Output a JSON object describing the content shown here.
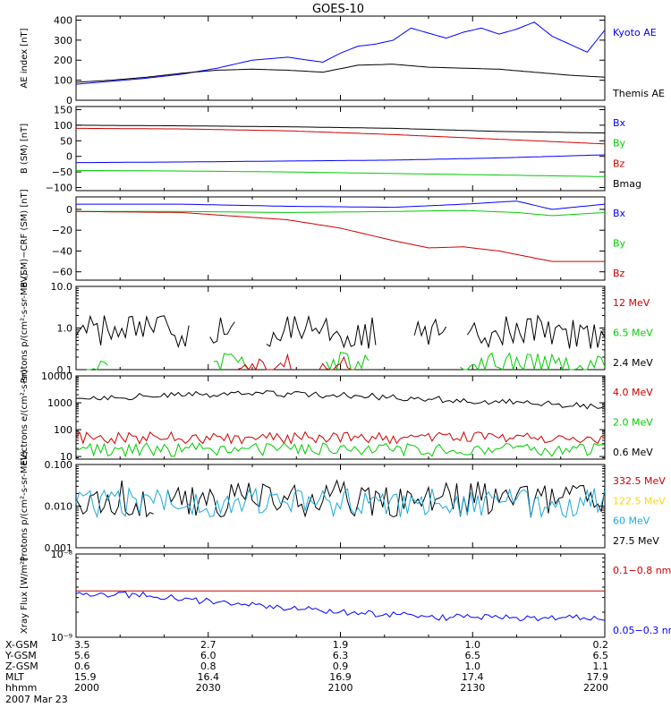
{
  "title": "GOES-10",
  "date": "2007 Mar 23",
  "colors": {
    "black": "#000000",
    "blue": "#0000ff",
    "red": "#cc0000",
    "green": "#00cc00",
    "yellow": "#ffd700",
    "cyan": "#1eaadc"
  },
  "chart_data": [
    {
      "type": "line",
      "ylabel": "AE index [nT]",
      "scale": "linear",
      "ylim": [
        0,
        420
      ],
      "yticks": [
        {
          "v": 400,
          "t": "400"
        },
        {
          "v": 300,
          "t": "300"
        },
        {
          "v": 200,
          "t": "200"
        },
        {
          "v": 100,
          "t": "100"
        },
        {
          "v": 0,
          "t": "0"
        }
      ],
      "labels": [
        {
          "text": "Kyoto AE",
          "color": "blue"
        },
        {
          "text": "Themis AE",
          "color": "black"
        }
      ],
      "series": [
        {
          "name": "Kyoto AE",
          "color": "blue",
          "keys": [
            [
              0,
              80
            ],
            [
              10,
              95
            ],
            [
              20,
              110
            ],
            [
              30,
              130
            ],
            [
              40,
              160
            ],
            [
              50,
              200
            ],
            [
              60,
              215
            ],
            [
              70,
              190
            ],
            [
              75,
              235
            ],
            [
              80,
              270
            ],
            [
              85,
              280
            ],
            [
              90,
              300
            ],
            [
              95,
              360
            ],
            [
              100,
              335
            ],
            [
              105,
              310
            ],
            [
              110,
              340
            ],
            [
              115,
              360
            ],
            [
              120,
              330
            ],
            [
              125,
              355
            ],
            [
              130,
              390
            ],
            [
              135,
              320
            ],
            [
              140,
              280
            ],
            [
              145,
              240
            ],
            [
              150,
              350
            ]
          ]
        },
        {
          "name": "Themis AE",
          "color": "black",
          "keys": [
            [
              0,
              90
            ],
            [
              10,
              100
            ],
            [
              20,
              115
            ],
            [
              30,
              135
            ],
            [
              40,
              150
            ],
            [
              50,
              155
            ],
            [
              60,
              150
            ],
            [
              70,
              140
            ],
            [
              80,
              175
            ],
            [
              90,
              180
            ],
            [
              100,
              165
            ],
            [
              110,
              160
            ],
            [
              120,
              155
            ],
            [
              130,
              140
            ],
            [
              140,
              125
            ],
            [
              150,
              115
            ]
          ]
        }
      ]
    },
    {
      "type": "line",
      "ylabel": "B (SM) [nT]",
      "scale": "linear",
      "ylim": [
        -110,
        160
      ],
      "yticks": [
        {
          "v": 150,
          "t": "150"
        },
        {
          "v": 100,
          "t": "100"
        },
        {
          "v": 50,
          "t": "50"
        },
        {
          "v": 0,
          "t": "0"
        },
        {
          "v": -50,
          "t": "−50"
        },
        {
          "v": -100,
          "t": "−100"
        }
      ],
      "labels": [
        {
          "text": "Bx",
          "color": "blue"
        },
        {
          "text": "By",
          "color": "green"
        },
        {
          "text": "Bz",
          "color": "red"
        },
        {
          "text": "Bmag",
          "color": "black"
        }
      ],
      "series": [
        {
          "name": "Bmag",
          "color": "black",
          "keys": [
            [
              0,
              100
            ],
            [
              30,
              98
            ],
            [
              60,
              95
            ],
            [
              90,
              90
            ],
            [
              120,
              80
            ],
            [
              150,
              75
            ]
          ]
        },
        {
          "name": "Bz",
          "color": "red",
          "keys": [
            [
              0,
              90
            ],
            [
              30,
              88
            ],
            [
              60,
              82
            ],
            [
              90,
              70
            ],
            [
              120,
              55
            ],
            [
              150,
              40
            ]
          ]
        },
        {
          "name": "Bx",
          "color": "blue",
          "keys": [
            [
              0,
              -20
            ],
            [
              30,
              -18
            ],
            [
              60,
              -15
            ],
            [
              90,
              -12
            ],
            [
              120,
              -5
            ],
            [
              150,
              5
            ]
          ]
        },
        {
          "name": "By",
          "color": "green",
          "keys": [
            [
              0,
              -45
            ],
            [
              30,
              -47
            ],
            [
              60,
              -50
            ],
            [
              90,
              -55
            ],
            [
              120,
              -60
            ],
            [
              150,
              -65
            ]
          ]
        }
      ]
    },
    {
      "type": "line",
      "ylabel": "B (SM)−CRF (SM) [nT]",
      "scale": "linear",
      "ylim": [
        -68,
        12
      ],
      "yticks": [
        {
          "v": 0,
          "t": "0"
        },
        {
          "v": -20,
          "t": "−20"
        },
        {
          "v": -40,
          "t": "−40"
        },
        {
          "v": -60,
          "t": "−60"
        }
      ],
      "labels": [
        {
          "text": "Bx",
          "color": "blue"
        },
        {
          "text": "By",
          "color": "green"
        },
        {
          "text": "Bz",
          "color": "red"
        }
      ],
      "series": [
        {
          "name": "Bx",
          "color": "blue",
          "keys": [
            [
              0,
              5
            ],
            [
              30,
              5
            ],
            [
              60,
              3
            ],
            [
              90,
              2
            ],
            [
              110,
              5
            ],
            [
              125,
              8
            ],
            [
              135,
              0
            ],
            [
              150,
              5
            ]
          ]
        },
        {
          "name": "By",
          "color": "green",
          "keys": [
            [
              0,
              -2
            ],
            [
              30,
              -2
            ],
            [
              60,
              -3
            ],
            [
              90,
              -2
            ],
            [
              110,
              -1
            ],
            [
              125,
              -3
            ],
            [
              135,
              -6
            ],
            [
              150,
              -3
            ]
          ]
        },
        {
          "name": "Bz",
          "color": "red",
          "keys": [
            [
              0,
              -2
            ],
            [
              30,
              -3
            ],
            [
              60,
              -10
            ],
            [
              75,
              -18
            ],
            [
              90,
              -30
            ],
            [
              100,
              -37
            ],
            [
              110,
              -36
            ],
            [
              120,
              -40
            ],
            [
              135,
              -50
            ],
            [
              150,
              -50
            ]
          ]
        }
      ]
    },
    {
      "type": "line",
      "ylabel": "Protons p/(cm²-s-sr-MeV)",
      "scale": "log",
      "ylim": [
        0.1,
        10
      ],
      "yticks": [
        {
          "v": 10,
          "t": "10.0"
        },
        {
          "v": 1,
          "t": "1.0"
        },
        {
          "v": 0.1,
          "t": "0.1"
        }
      ],
      "labels": [
        {
          "text": "12 MeV",
          "color": "red"
        },
        {
          "text": "6.5 MeV",
          "color": "green"
        },
        {
          "text": "2.4 MeV",
          "color": "black"
        }
      ],
      "series": [
        {
          "name": "2.4 MeV",
          "color": "black",
          "noisy": true,
          "base": 0.8,
          "amp": 0.4,
          "gaps": [
            [
              33,
              37
            ],
            [
              46,
              53
            ],
            [
              86,
              95
            ],
            [
              106,
              110
            ]
          ]
        },
        {
          "name": "6.5 MeV",
          "color": "green",
          "noisy": true,
          "base": 0.12,
          "amp": 0.35,
          "gaps": [
            [
              0,
              2
            ],
            [
              10,
              38
            ],
            [
              50,
              70
            ],
            [
              84,
              108
            ]
          ]
        },
        {
          "name": "12 MeV",
          "color": "red",
          "noisy": true,
          "base": 0.12,
          "amp": 0.3,
          "gaps": [
            [
              0,
              45
            ],
            [
              62,
              68
            ],
            [
              80,
              150
            ]
          ]
        }
      ]
    },
    {
      "type": "line",
      "ylabel": "Electrons e/(cm²-s-sr)",
      "scale": "log",
      "ylim": [
        8,
        10000
      ],
      "yticks": [
        {
          "v": 10000,
          "t": "10000"
        },
        {
          "v": 1000,
          "t": "1000"
        },
        {
          "v": 100,
          "t": "100"
        },
        {
          "v": 10,
          "t": "10"
        }
      ],
      "labels": [
        {
          "text": "4.0 MeV",
          "color": "red"
        },
        {
          "text": "2.0 MeV",
          "color": "green"
        },
        {
          "text": "0.6 MeV",
          "color": "black"
        }
      ],
      "series": [
        {
          "name": "0.6 MeV",
          "color": "black",
          "noisy": true,
          "base": 1500,
          "amp": 0.12,
          "trend": [
            [
              0,
              1500
            ],
            [
              50,
              2200
            ],
            [
              80,
              1800
            ],
            [
              110,
              1200
            ],
            [
              150,
              700
            ]
          ]
        },
        {
          "name": "4.0 MeV",
          "color": "red",
          "noisy": true,
          "base": 50,
          "amp": 0.22
        },
        {
          "name": "2.0 MeV",
          "color": "green",
          "noisy": true,
          "base": 18,
          "amp": 0.25
        }
      ]
    },
    {
      "type": "line",
      "ylabel": "Protons p/(cm²-s-sr-MeV)",
      "scale": "log",
      "ylim": [
        0.001,
        0.1
      ],
      "yticks": [
        {
          "v": 0.1,
          "t": "0.100"
        },
        {
          "v": 0.01,
          "t": "0.010"
        },
        {
          "v": 0.001,
          "t": "0.001"
        }
      ],
      "labels": [
        {
          "text": "332.5 MeV",
          "color": "red"
        },
        {
          "text": "122.5 MeV",
          "color": "yellow"
        },
        {
          "text": "60 MeV",
          "color": "cyan"
        },
        {
          "text": "27.5 MeV",
          "color": "black"
        }
      ],
      "series": [
        {
          "name": "27.5 MeV",
          "color": "black",
          "noisy": true,
          "base": 0.015,
          "amp": 0.45,
          "gaps": [
            [
              23,
              25
            ]
          ]
        },
        {
          "name": "60 MeV",
          "color": "cyan",
          "noisy": true,
          "base": 0.012,
          "amp": 0.35
        }
      ]
    },
    {
      "type": "line",
      "ylabel": "Xray Flux [W/m²]",
      "scale": "log",
      "ylim": [
        1e-09,
        1e-08
      ],
      "yticks": [
        {
          "v": 1e-08,
          "t": "10⁻⁸"
        },
        {
          "v": 1e-09,
          "t": "10⁻⁹"
        }
      ],
      "labels": [
        {
          "text": "0.1−0.8 nm",
          "color": "red"
        },
        {
          "text": "0.05−0.3 nm",
          "color": "blue"
        }
      ],
      "series": [
        {
          "name": "0.1−0.8 nm",
          "color": "red",
          "keys": [
            [
              0,
              3.6e-09
            ],
            [
              150,
              3.6e-09
            ]
          ]
        },
        {
          "name": "0.05−0.3 nm",
          "color": "blue",
          "noisy": true,
          "amp": 0.04,
          "trend": [
            [
              0,
              3.3e-09
            ],
            [
              20,
              3.2e-09
            ],
            [
              40,
              2.6e-09
            ],
            [
              70,
              2.1e-09
            ],
            [
              100,
              1.75e-09
            ],
            [
              130,
              1.7e-09
            ],
            [
              150,
              1.7e-09
            ]
          ]
        }
      ]
    }
  ],
  "x_axis": {
    "rows": [
      {
        "label": "X-GSM",
        "values": [
          "3.5",
          "2.7",
          "1.9",
          "1.0",
          "0.2"
        ]
      },
      {
        "label": "Y-GSM",
        "values": [
          "5.6",
          "6.0",
          "6.3",
          "6.5",
          "6.5"
        ]
      },
      {
        "label": "Z-GSM",
        "values": [
          "0.6",
          "0.8",
          "0.9",
          "1.0",
          "1.1"
        ]
      },
      {
        "label": "MLT",
        "values": [
          "15.9",
          "16.4",
          "16.9",
          "17.4",
          "17.9"
        ]
      },
      {
        "label": "hhmm",
        "values": [
          "2000",
          "2030",
          "2100",
          "2130",
          "2200"
        ]
      }
    ],
    "tick_minutes": [
      0,
      30,
      60,
      90,
      120
    ],
    "range_minutes": [
      0,
      120
    ]
  }
}
